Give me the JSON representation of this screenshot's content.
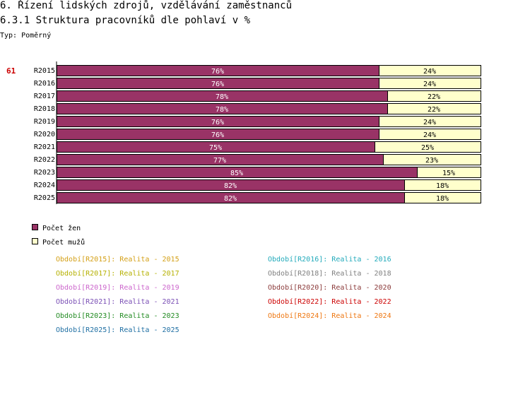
{
  "header": {
    "title": "6. Řízení lidských zdrojů, vzdělávání zaměstnanců",
    "subtitle": "6.3.1 Struktura pracovníků dle pohlaví v %",
    "type_label": "Typ: Poměrný",
    "row_number": "61"
  },
  "colors": {
    "women": "#993366",
    "men": "#ffffcc",
    "row_number": "#cc0000"
  },
  "chart_data": {
    "type": "bar",
    "orientation": "horizontal",
    "stacked": true,
    "percent": true,
    "categories": [
      "R2015",
      "R2016",
      "R2017",
      "R2018",
      "R2019",
      "R2020",
      "R2021",
      "R2022",
      "R2023",
      "R2024",
      "R2025"
    ],
    "series": [
      {
        "name": "Počet žen",
        "values": [
          76,
          76,
          78,
          78,
          76,
          76,
          75,
          77,
          85,
          82,
          82
        ]
      },
      {
        "name": "Počet mužů",
        "values": [
          24,
          24,
          22,
          22,
          24,
          24,
          25,
          23,
          15,
          18,
          18
        ]
      }
    ],
    "value_suffix": "%",
    "xlim": [
      0,
      100
    ]
  },
  "legend": {
    "items": [
      {
        "label": "Počet žen"
      },
      {
        "label": "Počet mužů"
      }
    ]
  },
  "periods": [
    {
      "text": "Období[R2015]: Realita - 2015",
      "color": "#d4a017"
    },
    {
      "text": "Období[R2016]: Realita - 2016",
      "color": "#22aabb"
    },
    {
      "text": "Období[R2017]: Realita - 2017",
      "color": "#b5b000"
    },
    {
      "text": "Období[R2018]: Realita - 2018",
      "color": "#808080"
    },
    {
      "text": "Období[R2019]: Realita - 2019",
      "color": "#cc66cc"
    },
    {
      "text": "Období[R2020]: Realita - 2020",
      "color": "#8b3a3a"
    },
    {
      "text": "Období[R2021]: Realita - 2021",
      "color": "#7a4fb5"
    },
    {
      "text": "Období[R2022]: Realita - 2022",
      "color": "#cc0000"
    },
    {
      "text": "Období[R2023]: Realita - 2023",
      "color": "#228b22"
    },
    {
      "text": "Období[R2024]: Realita - 2024",
      "color": "#ee7711"
    },
    {
      "text": "Období[R2025]: Realita - 2025",
      "color": "#1f6fa3"
    }
  ]
}
